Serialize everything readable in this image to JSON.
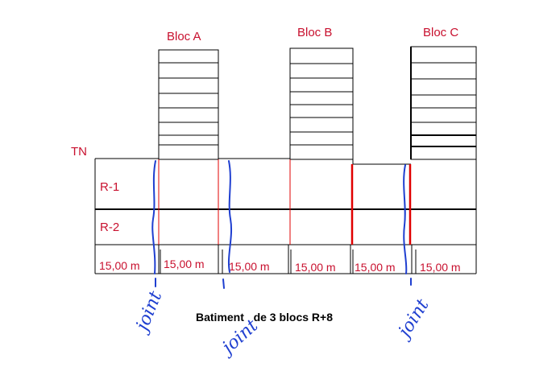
{
  "blocks": [
    {
      "label": "Bloc A"
    },
    {
      "label": "Bloc B"
    },
    {
      "label": "Bloc C"
    }
  ],
  "levels": {
    "ground": "TN",
    "basement1": "R-1",
    "basement2": "R-2"
  },
  "spans": [
    "15,00 m",
    "15,00 m",
    "15,00 m",
    "15,00 m",
    "15,00 m",
    "15,00 m"
  ],
  "caption": "Batiment   de 3 blocs R+8",
  "joint_annotations": [
    "joint",
    "joint",
    "joint"
  ],
  "colors": {
    "labels": "#c8102e",
    "joints_sketch": "#1f3fd0",
    "joint_lines": "#e00000",
    "structure": "#000000"
  }
}
